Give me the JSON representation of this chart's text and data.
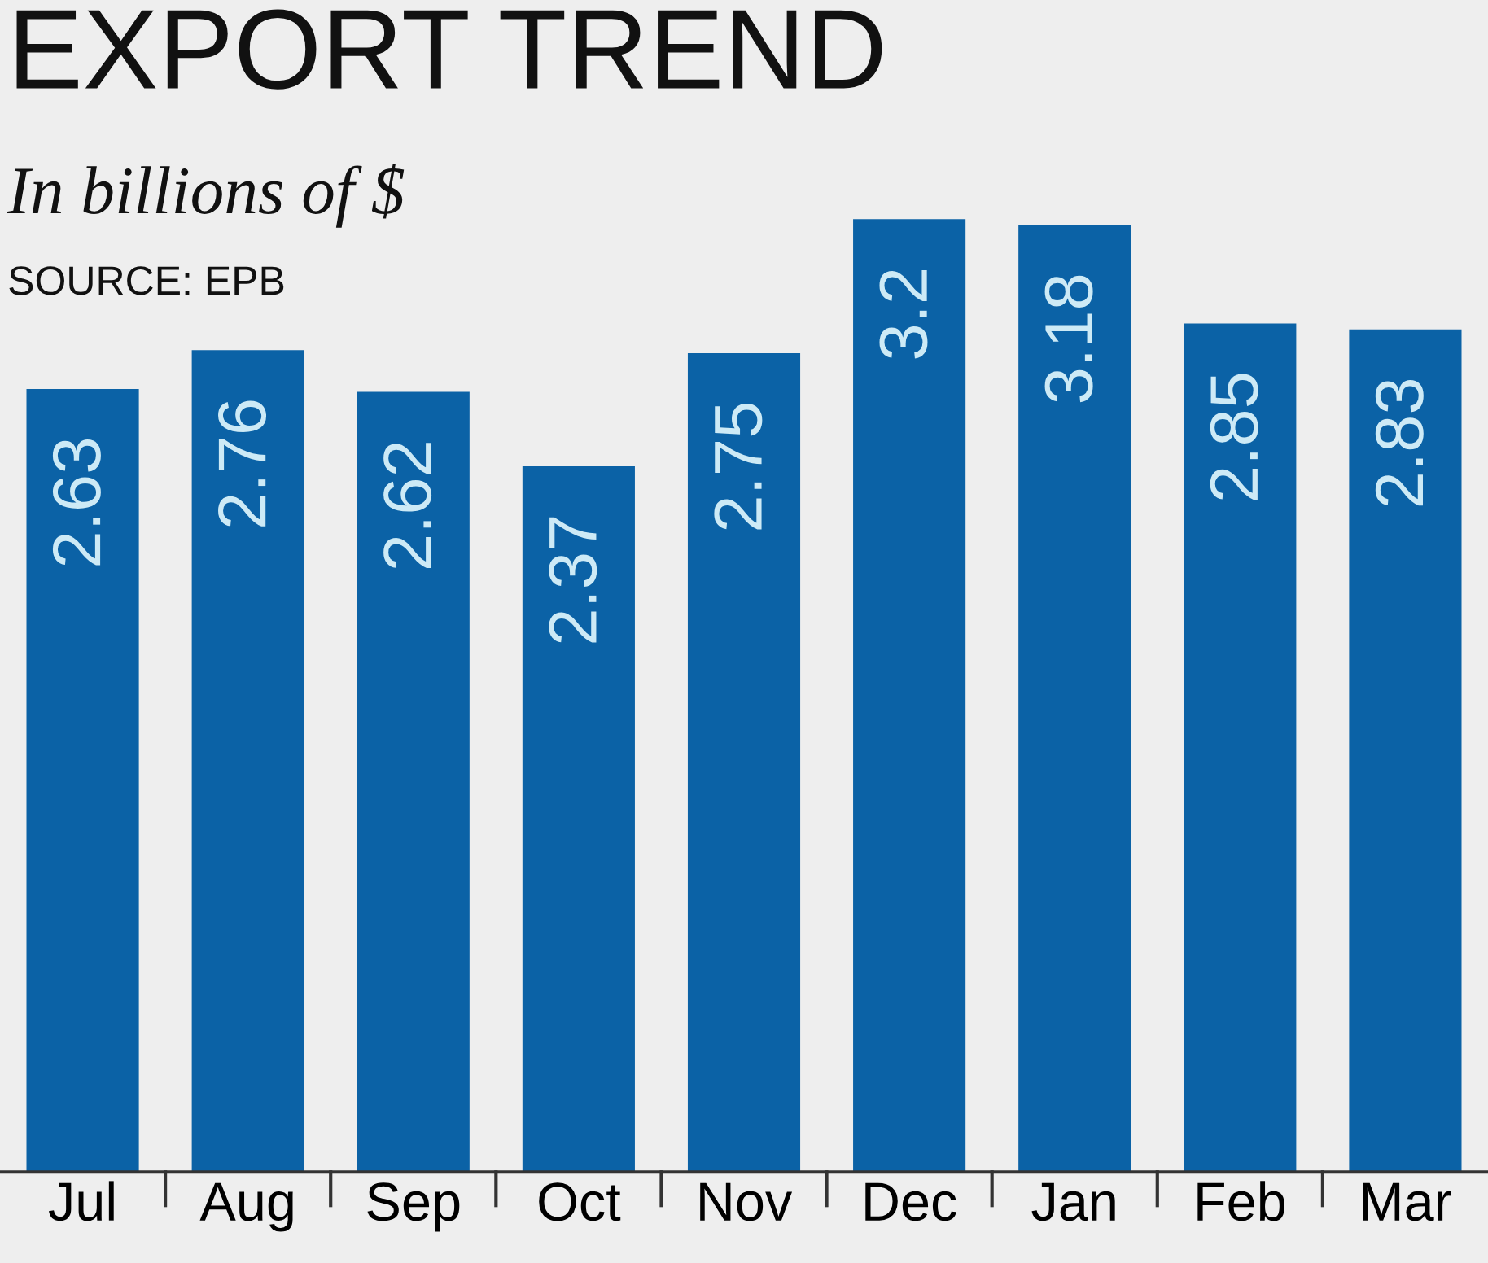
{
  "chart_data": {
    "type": "bar",
    "title": "EXPORT TREND",
    "subtitle": "In billions of $",
    "annotations": [
      "SOURCE: EPB"
    ],
    "categories": [
      "Jul",
      "Aug",
      "Sep",
      "Oct",
      "Nov",
      "Dec",
      "Jan",
      "Feb",
      "Mar"
    ],
    "values": [
      2.63,
      2.76,
      2.62,
      2.37,
      2.75,
      3.2,
      3.18,
      2.85,
      2.83
    ],
    "color": "#0b62a6",
    "data_labels": true,
    "grid": false,
    "legend": false
  }
}
